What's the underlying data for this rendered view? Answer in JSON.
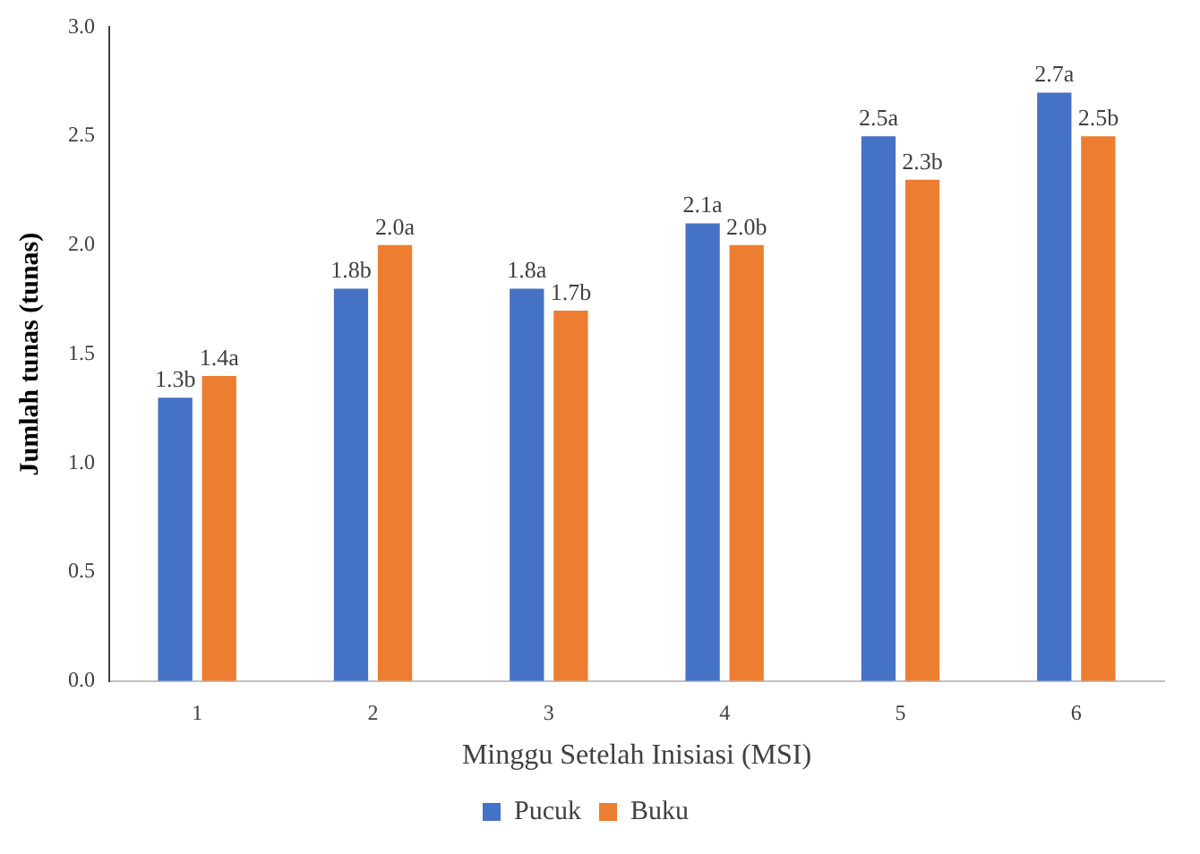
{
  "chart_data": {
    "type": "bar",
    "xlabel": "Minggu Setelah Inisiasi (MSI)",
    "ylabel": "Jumlah tunas (tunas)",
    "categories": [
      "1",
      "2",
      "3",
      "4",
      "5",
      "6"
    ],
    "series": [
      {
        "name": "Pucuk",
        "color": "#4472c4",
        "values": [
          1.3,
          1.8,
          1.8,
          2.1,
          2.5,
          2.7
        ],
        "value_labels": [
          "1.3b",
          "1.8b",
          "1.8a",
          "2.1a",
          "2.5a",
          "2.7a"
        ]
      },
      {
        "name": "Buku",
        "color": "#ed7d31",
        "values": [
          1.4,
          2.0,
          1.7,
          2.0,
          2.3,
          2.5
        ],
        "value_labels": [
          "1.4a",
          "2.0a",
          "1.7b",
          "2.0b",
          "2.3b",
          "2.5b"
        ]
      }
    ],
    "ylim": [
      0,
      3
    ],
    "yticks": [
      {
        "value": 0,
        "label": "0.0"
      },
      {
        "value": 0.5,
        "label": "0.5"
      },
      {
        "value": 1,
        "label": "1.0"
      },
      {
        "value": 1.5,
        "label": "1.5"
      },
      {
        "value": 2,
        "label": "2.0"
      },
      {
        "value": 2.5,
        "label": "2.5"
      },
      {
        "value": 3,
        "label": "3.0"
      }
    ],
    "grid": false,
    "legend": "bottom"
  }
}
